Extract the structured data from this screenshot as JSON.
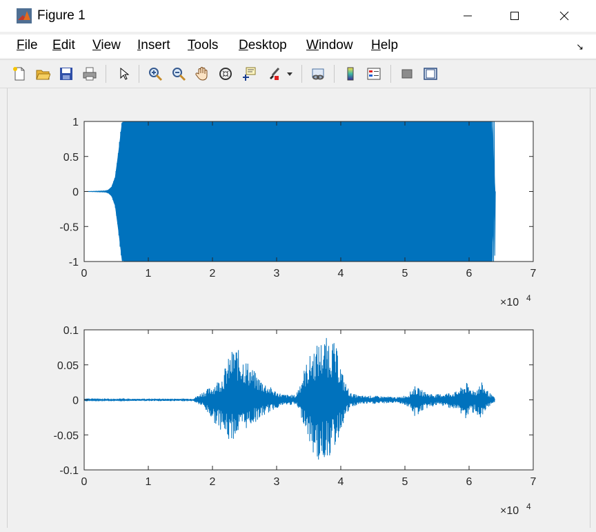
{
  "window": {
    "title": "Figure 1"
  },
  "menu": [
    {
      "label": "File",
      "mnemonic": "F",
      "rest": "ile"
    },
    {
      "label": "Edit",
      "mnemonic": "E",
      "rest": "dit"
    },
    {
      "label": "View",
      "mnemonic": "V",
      "rest": "iew"
    },
    {
      "label": "Insert",
      "mnemonic": "I",
      "rest": "nsert"
    },
    {
      "label": "Tools",
      "mnemonic": "T",
      "rest": "ools"
    },
    {
      "label": "Desktop",
      "mnemonic": "D",
      "rest": "esktop"
    },
    {
      "label": "Window",
      "mnemonic": "W",
      "rest": "indow"
    },
    {
      "label": "Help",
      "mnemonic": "H",
      "rest": "elp"
    }
  ],
  "toolbar": {
    "icons": [
      "new-figure-icon",
      "open-file-icon",
      "save-icon",
      "print-icon",
      "edit-plot-arrow-icon",
      "zoom-in-icon",
      "zoom-out-icon",
      "pan-hand-icon",
      "rotate-3d-icon",
      "data-cursor-icon",
      "brush-icon",
      "brush-dropdown-icon",
      "link-plot-icon",
      "insert-colorbar-icon",
      "insert-legend-icon",
      "hide-plot-tools-icon",
      "show-plot-tools-icon"
    ]
  },
  "colors": {
    "signal": "#0072bd",
    "axes_bg": "#ffffff",
    "figure_bg": "#f0f0f0"
  },
  "chart_data": [
    {
      "type": "line",
      "description_series": "Sinusoidal chirp-like signal filling full amplitude",
      "x_range": [
        0,
        70000
      ],
      "xlim": [
        0,
        7
      ],
      "ylim": [
        -1,
        1
      ],
      "xticks": [
        "0",
        "1",
        "2",
        "3",
        "4",
        "5",
        "6",
        "7"
      ],
      "yticks": [
        "1",
        "0.5",
        "0",
        "-0.5",
        "-1"
      ],
      "exponent_label": "×10",
      "exponent_power": "4",
      "grid": false,
      "envelope": {
        "x": [
          0,
          3500,
          4200,
          4800,
          5200,
          5600,
          5900,
          6000,
          64000,
          64100
        ],
        "amplitude": [
          0.0,
          0.01,
          0.05,
          0.2,
          0.45,
          0.8,
          1.0,
          1.0,
          1.0,
          0.0
        ]
      }
    },
    {
      "type": "line",
      "x_range": [
        0,
        64000
      ],
      "xlim": [
        0,
        7
      ],
      "ylim": [
        -0.1,
        0.1
      ],
      "xticks": [
        "0",
        "1",
        "2",
        "3",
        "4",
        "5",
        "6",
        "7"
      ],
      "yticks": [
        "0.1",
        "0.05",
        "0",
        "-0.05",
        "-0.1"
      ],
      "exponent_label": "×10",
      "exponent_power": "4",
      "grid": false,
      "envelope": {
        "x": [
          0,
          17000,
          18500,
          20000,
          21500,
          22500,
          23500,
          24000,
          25500,
          27000,
          28500,
          30000,
          31000,
          33000,
          34500,
          35500,
          36500,
          37500,
          38500,
          39500,
          40500,
          41500,
          43000,
          45000,
          47000,
          49000,
          50500,
          51500,
          52500,
          53500,
          55000,
          56500,
          58000,
          59000,
          59600,
          60000,
          61000,
          62000,
          63000,
          64000
        ],
        "upper": [
          0.001,
          0.002,
          0.012,
          0.02,
          0.035,
          0.06,
          0.08,
          0.072,
          0.055,
          0.035,
          0.022,
          0.012,
          0.008,
          0.007,
          0.05,
          0.07,
          0.082,
          0.088,
          0.092,
          0.07,
          0.03,
          0.01,
          0.006,
          0.006,
          0.005,
          0.004,
          0.008,
          0.02,
          0.015,
          0.01,
          0.008,
          0.01,
          0.012,
          0.02,
          0.025,
          0.018,
          0.015,
          0.025,
          0.012,
          0.003
        ],
        "lower": [
          -0.001,
          -0.002,
          -0.01,
          -0.03,
          -0.045,
          -0.06,
          -0.055,
          -0.05,
          -0.04,
          -0.03,
          -0.02,
          -0.012,
          -0.008,
          -0.007,
          -0.04,
          -0.075,
          -0.09,
          -0.085,
          -0.08,
          -0.06,
          -0.03,
          -0.012,
          -0.006,
          -0.006,
          -0.005,
          -0.004,
          -0.01,
          -0.025,
          -0.018,
          -0.012,
          -0.008,
          -0.01,
          -0.015,
          -0.022,
          -0.03,
          -0.02,
          -0.018,
          -0.032,
          -0.012,
          -0.003
        ]
      }
    }
  ]
}
